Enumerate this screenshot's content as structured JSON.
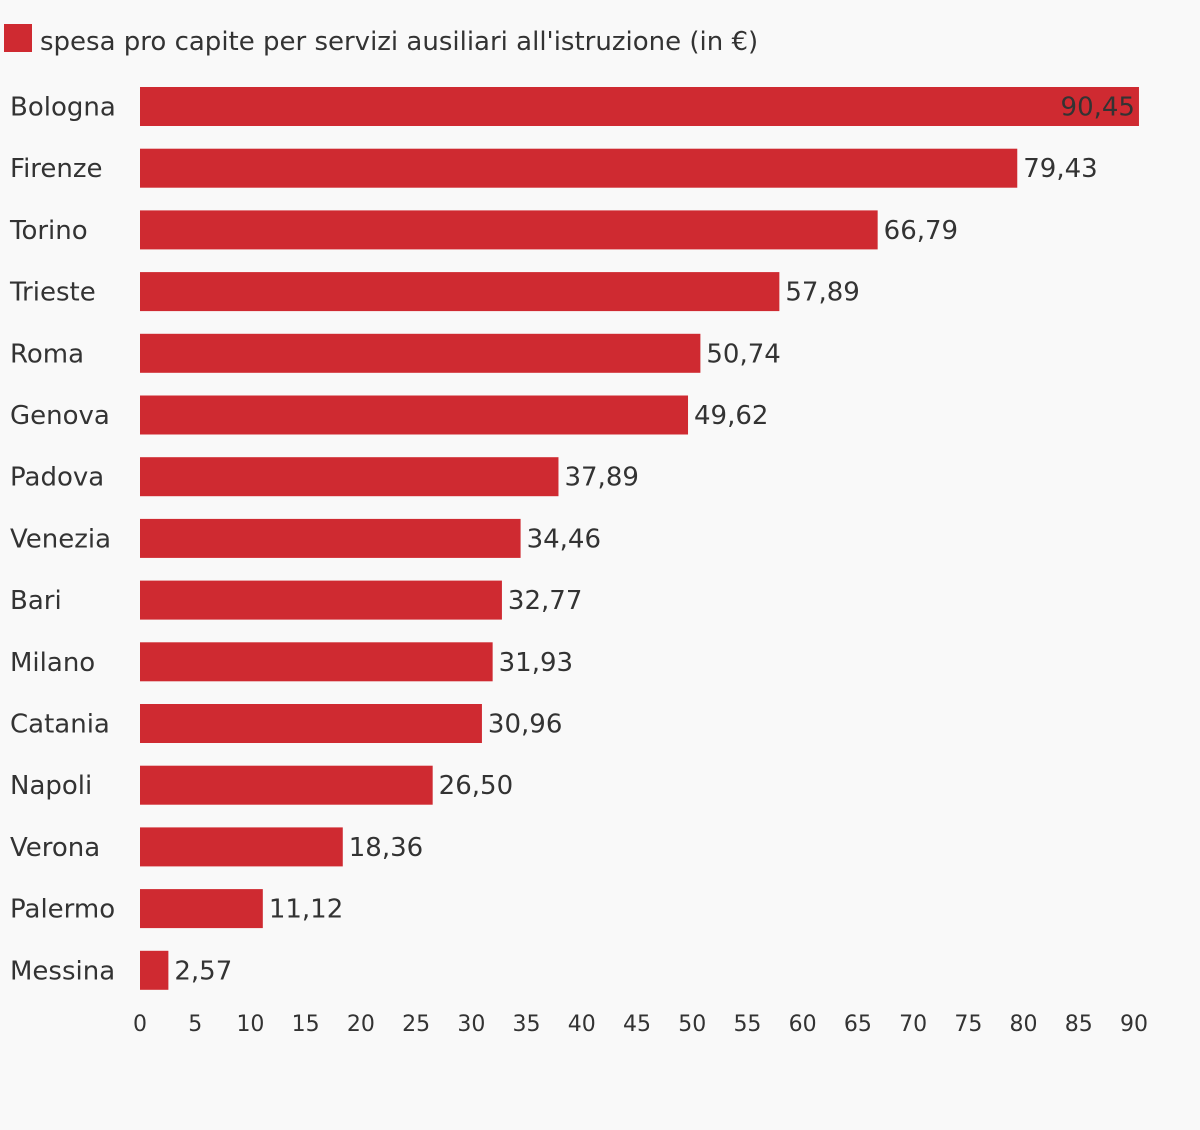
{
  "chart_data": {
    "type": "bar",
    "orientation": "horizontal",
    "categories": [
      "Bologna",
      "Firenze",
      "Torino",
      "Trieste",
      "Roma",
      "Genova",
      "Padova",
      "Venezia",
      "Bari",
      "Milano",
      "Catania",
      "Napoli",
      "Verona",
      "Palermo",
      "Messina"
    ],
    "series": [
      {
        "name": "spesa pro capite per servizi ausiliari all'istruzione (in €)",
        "values": [
          90.45,
          79.43,
          66.79,
          57.89,
          50.74,
          49.62,
          37.89,
          34.46,
          32.77,
          31.93,
          30.96,
          26.5,
          18.36,
          11.12,
          2.57
        ],
        "value_labels": [
          "90,45",
          "79,43",
          "66,79",
          "57,89",
          "50,74",
          "49,62",
          "37,89",
          "34,46",
          "32,77",
          "31,93",
          "30,96",
          "26,50",
          "18,36",
          "11,12",
          "2,57"
        ],
        "color": "#cf2a31"
      }
    ],
    "xlim": [
      0,
      90
    ],
    "x_ticks": [
      "0",
      "5",
      "10",
      "15",
      "20",
      "25",
      "30",
      "35",
      "40",
      "45",
      "50",
      "55",
      "60",
      "65",
      "70",
      "75",
      "80",
      "85",
      "90"
    ],
    "legend_position": "top-left",
    "grid": false,
    "title": "",
    "xlabel": "",
    "ylabel": ""
  }
}
